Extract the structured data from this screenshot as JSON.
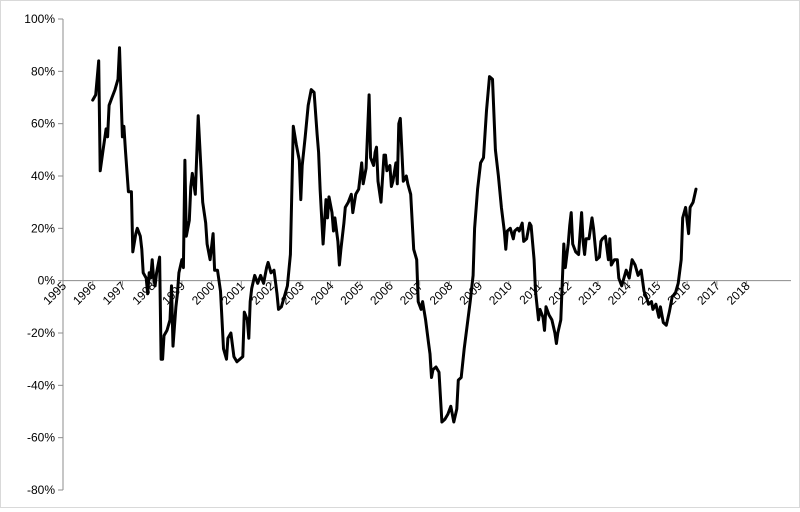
{
  "chart_data": {
    "type": "line",
    "title": "",
    "xlabel": "",
    "ylabel": "",
    "xlim": [
      1995,
      2019
    ],
    "ylim": [
      -80,
      100
    ],
    "grid": false,
    "legend": "none",
    "x_ticks": [
      "1995",
      "1996",
      "1997",
      "1998",
      "1999",
      "2000",
      "2001",
      "2002",
      "2003",
      "2004",
      "2005",
      "2006",
      "2007",
      "2008",
      "2009",
      "2010",
      "2011",
      "2012",
      "2013",
      "2014",
      "2015",
      "2016",
      "2017",
      "2018"
    ],
    "y_ticks": [
      "100%",
      "80%",
      "60%",
      "40%",
      "20%",
      "0%",
      "-20%",
      "-40%",
      "-60%",
      "-80%"
    ],
    "y_tick_values": [
      100,
      80,
      60,
      40,
      20,
      0,
      -20,
      -40,
      -60,
      -80
    ],
    "series": [
      {
        "color": "#000000",
        "points": [
          [
            1996.0,
            69
          ],
          [
            1996.1,
            71
          ],
          [
            1996.2,
            84
          ],
          [
            1996.25,
            42
          ],
          [
            1996.35,
            50
          ],
          [
            1996.45,
            58
          ],
          [
            1996.5,
            55
          ],
          [
            1996.55,
            67
          ],
          [
            1996.65,
            70
          ],
          [
            1996.75,
            73
          ],
          [
            1996.85,
            77
          ],
          [
            1996.9,
            89
          ],
          [
            1997.0,
            55
          ],
          [
            1997.05,
            59
          ],
          [
            1997.1,
            50
          ],
          [
            1997.2,
            34
          ],
          [
            1997.3,
            34
          ],
          [
            1997.35,
            11
          ],
          [
            1997.45,
            18
          ],
          [
            1997.5,
            20
          ],
          [
            1997.6,
            17
          ],
          [
            1997.65,
            12
          ],
          [
            1997.7,
            3
          ],
          [
            1997.8,
            1
          ],
          [
            1997.85,
            -5
          ],
          [
            1997.9,
            3
          ],
          [
            1997.95,
            1
          ],
          [
            1998.0,
            8
          ],
          [
            1998.05,
            1
          ],
          [
            1998.1,
            -2
          ],
          [
            1998.15,
            3
          ],
          [
            1998.25,
            9
          ],
          [
            1998.3,
            -30
          ],
          [
            1998.35,
            -30
          ],
          [
            1998.4,
            -21
          ],
          [
            1998.5,
            -19
          ],
          [
            1998.6,
            -15
          ],
          [
            1998.65,
            -2
          ],
          [
            1998.7,
            -25
          ],
          [
            1998.8,
            -10
          ],
          [
            1998.85,
            -5
          ],
          [
            1998.9,
            3
          ],
          [
            1999.0,
            8
          ],
          [
            1999.05,
            5
          ],
          [
            1999.1,
            46
          ],
          [
            1999.15,
            17
          ],
          [
            1999.25,
            23
          ],
          [
            1999.3,
            36
          ],
          [
            1999.35,
            41
          ],
          [
            1999.45,
            33
          ],
          [
            1999.55,
            63
          ],
          [
            1999.6,
            52
          ],
          [
            1999.7,
            30
          ],
          [
            1999.75,
            26
          ],
          [
            1999.8,
            22
          ],
          [
            1999.85,
            14
          ],
          [
            1999.95,
            8
          ],
          [
            2000.05,
            18
          ],
          [
            2000.1,
            4
          ],
          [
            2000.2,
            4
          ],
          [
            2000.3,
            -4
          ],
          [
            2000.4,
            -26
          ],
          [
            2000.5,
            -30
          ],
          [
            2000.55,
            -22
          ],
          [
            2000.65,
            -20
          ],
          [
            2000.75,
            -29
          ],
          [
            2000.85,
            -31
          ],
          [
            2000.95,
            -30
          ],
          [
            2001.05,
            -29
          ],
          [
            2001.1,
            -12
          ],
          [
            2001.2,
            -15
          ],
          [
            2001.25,
            -22
          ],
          [
            2001.3,
            -8
          ],
          [
            2001.35,
            -3
          ],
          [
            2001.45,
            2
          ],
          [
            2001.55,
            -1
          ],
          [
            2001.65,
            2
          ],
          [
            2001.75,
            -1
          ],
          [
            2001.85,
            5
          ],
          [
            2001.9,
            7
          ],
          [
            2002.0,
            3
          ],
          [
            2002.1,
            4
          ],
          [
            2002.2,
            -5
          ],
          [
            2002.25,
            -11
          ],
          [
            2002.35,
            -10
          ],
          [
            2002.45,
            -6
          ],
          [
            2002.55,
            -2
          ],
          [
            2002.65,
            10
          ],
          [
            2002.75,
            59
          ],
          [
            2002.85,
            52
          ],
          [
            2002.95,
            46
          ],
          [
            2003.0,
            31
          ],
          [
            2003.05,
            44
          ],
          [
            2003.15,
            55
          ],
          [
            2003.25,
            67
          ],
          [
            2003.35,
            73
          ],
          [
            2003.45,
            72
          ],
          [
            2003.55,
            56
          ],
          [
            2003.6,
            49
          ],
          [
            2003.65,
            35
          ],
          [
            2003.75,
            14
          ],
          [
            2003.85,
            31
          ],
          [
            2003.9,
            24
          ],
          [
            2003.95,
            32
          ],
          [
            2004.05,
            26
          ],
          [
            2004.1,
            19
          ],
          [
            2004.15,
            24
          ],
          [
            2004.25,
            15
          ],
          [
            2004.3,
            6
          ],
          [
            2004.35,
            12
          ],
          [
            2004.45,
            22
          ],
          [
            2004.5,
            28
          ],
          [
            2004.6,
            30
          ],
          [
            2004.7,
            33
          ],
          [
            2004.75,
            26
          ],
          [
            2004.85,
            33
          ],
          [
            2004.95,
            35
          ],
          [
            2005.05,
            45
          ],
          [
            2005.1,
            37
          ],
          [
            2005.2,
            43
          ],
          [
            2005.3,
            71
          ],
          [
            2005.35,
            47
          ],
          [
            2005.45,
            44
          ],
          [
            2005.5,
            49
          ],
          [
            2005.55,
            51
          ],
          [
            2005.6,
            38
          ],
          [
            2005.7,
            30
          ],
          [
            2005.8,
            48
          ],
          [
            2005.85,
            48
          ],
          [
            2005.9,
            42
          ],
          [
            2006.0,
            44
          ],
          [
            2006.05,
            36
          ],
          [
            2006.1,
            38
          ],
          [
            2006.2,
            45
          ],
          [
            2006.25,
            37
          ],
          [
            2006.3,
            60
          ],
          [
            2006.35,
            62
          ],
          [
            2006.45,
            38
          ],
          [
            2006.55,
            40
          ],
          [
            2006.6,
            37
          ],
          [
            2006.7,
            33
          ],
          [
            2006.8,
            12
          ],
          [
            2006.9,
            8
          ],
          [
            2006.95,
            -8
          ],
          [
            2007.05,
            -11
          ],
          [
            2007.1,
            -8
          ],
          [
            2007.2,
            -15
          ],
          [
            2007.3,
            -24
          ],
          [
            2007.35,
            -28
          ],
          [
            2007.4,
            -37
          ],
          [
            2007.45,
            -34
          ],
          [
            2007.55,
            -33
          ],
          [
            2007.65,
            -35
          ],
          [
            2007.75,
            -54
          ],
          [
            2007.85,
            -53
          ],
          [
            2007.95,
            -51
          ],
          [
            2008.05,
            -48
          ],
          [
            2008.15,
            -54
          ],
          [
            2008.25,
            -49
          ],
          [
            2008.3,
            -38
          ],
          [
            2008.4,
            -37
          ],
          [
            2008.5,
            -26
          ],
          [
            2008.6,
            -17
          ],
          [
            2008.7,
            -8
          ],
          [
            2008.8,
            2
          ],
          [
            2008.85,
            20
          ],
          [
            2008.95,
            35
          ],
          [
            2009.05,
            45
          ],
          [
            2009.15,
            47
          ],
          [
            2009.25,
            65
          ],
          [
            2009.35,
            78
          ],
          [
            2009.45,
            77
          ],
          [
            2009.55,
            50
          ],
          [
            2009.65,
            40
          ],
          [
            2009.75,
            28
          ],
          [
            2009.85,
            19
          ],
          [
            2009.9,
            12
          ],
          [
            2009.95,
            19
          ],
          [
            2010.05,
            20
          ],
          [
            2010.15,
            16
          ],
          [
            2010.2,
            19
          ],
          [
            2010.3,
            20
          ],
          [
            2010.35,
            19
          ],
          [
            2010.45,
            22
          ],
          [
            2010.5,
            15
          ],
          [
            2010.6,
            16
          ],
          [
            2010.7,
            22
          ],
          [
            2010.75,
            21
          ],
          [
            2010.85,
            8
          ],
          [
            2010.9,
            -4
          ],
          [
            2011.0,
            -15
          ],
          [
            2011.05,
            -11
          ],
          [
            2011.15,
            -14
          ],
          [
            2011.2,
            -19
          ],
          [
            2011.25,
            -10
          ],
          [
            2011.35,
            -13
          ],
          [
            2011.45,
            -15
          ],
          [
            2011.55,
            -20
          ],
          [
            2011.6,
            -24
          ],
          [
            2011.65,
            -20
          ],
          [
            2011.75,
            -15
          ],
          [
            2011.85,
            14
          ],
          [
            2011.9,
            5
          ],
          [
            2012.0,
            14
          ],
          [
            2012.05,
            21
          ],
          [
            2012.1,
            26
          ],
          [
            2012.15,
            14
          ],
          [
            2012.25,
            11
          ],
          [
            2012.35,
            10
          ],
          [
            2012.45,
            26
          ],
          [
            2012.5,
            15
          ],
          [
            2012.55,
            10
          ],
          [
            2012.6,
            16
          ],
          [
            2012.7,
            16
          ],
          [
            2012.8,
            24
          ],
          [
            2012.85,
            20
          ],
          [
            2012.95,
            8
          ],
          [
            2013.05,
            9
          ],
          [
            2013.1,
            15
          ],
          [
            2013.15,
            16
          ],
          [
            2013.25,
            17
          ],
          [
            2013.35,
            8
          ],
          [
            2013.4,
            16
          ],
          [
            2013.45,
            6
          ],
          [
            2013.55,
            8
          ],
          [
            2013.65,
            8
          ],
          [
            2013.7,
            1
          ],
          [
            2013.8,
            -2
          ],
          [
            2013.9,
            2
          ],
          [
            2013.95,
            4
          ],
          [
            2014.05,
            1
          ],
          [
            2014.15,
            8
          ],
          [
            2014.25,
            6
          ],
          [
            2014.35,
            2
          ],
          [
            2014.45,
            4
          ],
          [
            2014.55,
            -4
          ],
          [
            2014.65,
            -7
          ],
          [
            2014.7,
            -9
          ],
          [
            2014.8,
            -8
          ],
          [
            2014.85,
            -11
          ],
          [
            2014.95,
            -9
          ],
          [
            2015.05,
            -14
          ],
          [
            2015.1,
            -10
          ],
          [
            2015.2,
            -16
          ],
          [
            2015.3,
            -17
          ],
          [
            2015.4,
            -12
          ],
          [
            2015.5,
            -6
          ],
          [
            2015.6,
            -5
          ],
          [
            2015.7,
            -1
          ],
          [
            2015.8,
            8
          ],
          [
            2015.85,
            24
          ],
          [
            2015.95,
            28
          ],
          [
            2016.05,
            18
          ],
          [
            2016.1,
            28
          ],
          [
            2016.2,
            30
          ],
          [
            2016.3,
            35
          ]
        ]
      }
    ]
  }
}
